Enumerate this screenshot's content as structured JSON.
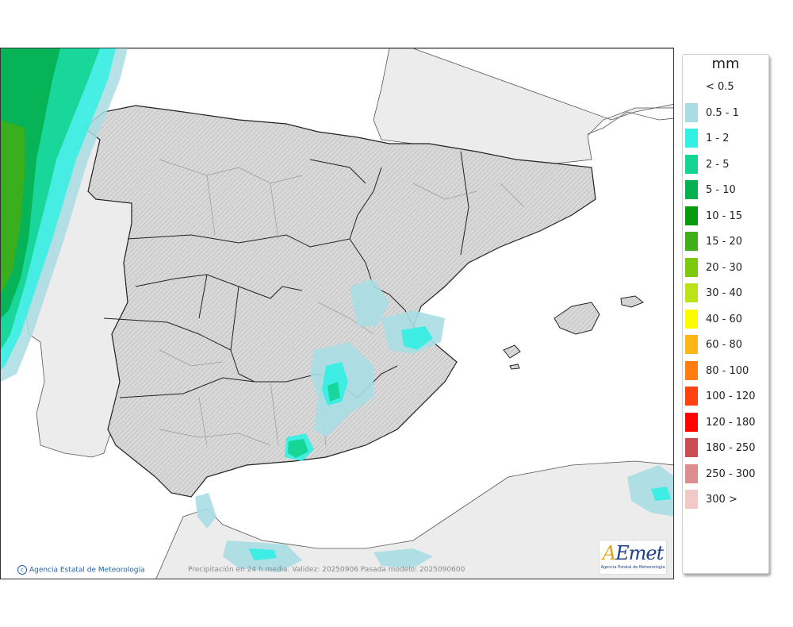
{
  "legend": {
    "title": "mm",
    "items": [
      {
        "label": "< 0.5",
        "color": "#ffffff"
      },
      {
        "label": "0.5 - 1",
        "color": "#a9dde3"
      },
      {
        "label": "1 - 2",
        "color": "#32f0e3"
      },
      {
        "label": "2 - 5",
        "color": "#14d491"
      },
      {
        "label": "5 - 10",
        "color": "#04b050"
      },
      {
        "label": "10 - 15",
        "color": "#069a0e"
      },
      {
        "label": "15 - 20",
        "color": "#3fae18"
      },
      {
        "label": "20 - 30",
        "color": "#7dc90e"
      },
      {
        "label": "30 - 40",
        "color": "#bce218"
      },
      {
        "label": "40 - 60",
        "color": "#fcfc00"
      },
      {
        "label": "60 - 80",
        "color": "#fdb618"
      },
      {
        "label": "80 - 100",
        "color": "#ff7d0e"
      },
      {
        "label": "100 - 120",
        "color": "#ff420f"
      },
      {
        "label": "120 - 180",
        "color": "#fe0400"
      },
      {
        "label": "180 - 250",
        "color": "#cb4e53"
      },
      {
        "label": "250 - 300",
        "color": "#de8d8f"
      },
      {
        "label": "300 >",
        "color": "#f2c8c8"
      }
    ]
  },
  "credit": "Agencia Estatal de Meteorología",
  "caption": "Precipitación en 24 h media. Validez: 20250906 Pasada modelo: 2025090600",
  "logo": {
    "brand_a": "A",
    "brand_rest": "Emet",
    "subtitle": "Agencia Estatal de Meteorología"
  },
  "colors": {
    "sea": "#ffffff",
    "land_outside": "#ececec",
    "land_spain": "#d6d6d6",
    "border": "#222222",
    "province_border": "#9a9a9a"
  }
}
